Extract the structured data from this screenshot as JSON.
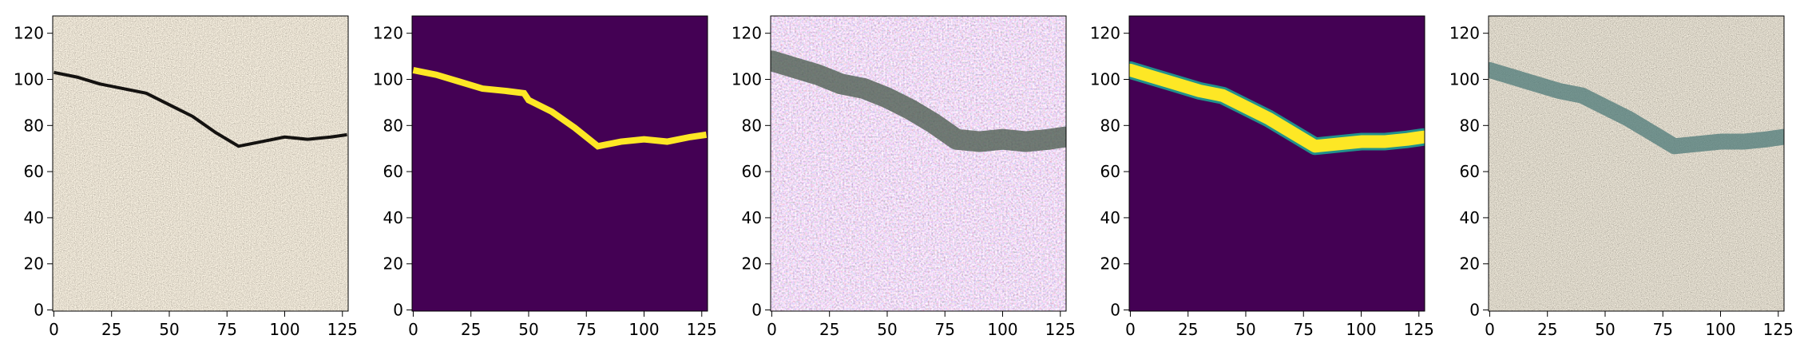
{
  "chart_data": [
    {
      "type": "heatmap",
      "image": "pavement crack photo",
      "colormap": "rgb",
      "x_ticks": [
        "0",
        "25",
        "50",
        "75",
        "100",
        "125"
      ],
      "y_ticks": [
        "0",
        "20",
        "40",
        "60",
        "80",
        "100",
        "120"
      ],
      "xlim": [
        -0.5,
        127.5
      ],
      "ylim": [
        127.5,
        -0.5
      ],
      "crack_path": [
        [
          0,
          103
        ],
        [
          10,
          101
        ],
        [
          20,
          98
        ],
        [
          30,
          96
        ],
        [
          40,
          94
        ],
        [
          50,
          89
        ],
        [
          60,
          84
        ],
        [
          70,
          77
        ],
        [
          80,
          71
        ],
        [
          90,
          73
        ],
        [
          100,
          75
        ],
        [
          110,
          74
        ],
        [
          120,
          75
        ],
        [
          127,
          76
        ]
      ]
    },
    {
      "type": "heatmap",
      "image": "ground truth crack mask",
      "colormap": "viridis",
      "x_ticks": [
        "0",
        "25",
        "50",
        "75",
        "100",
        "125"
      ],
      "y_ticks": [
        "0",
        "20",
        "40",
        "60",
        "80",
        "100",
        "120"
      ],
      "xlim": [
        -0.5,
        127.5
      ],
      "ylim": [
        127.5,
        -0.5
      ],
      "crack_path": [
        [
          0,
          104
        ],
        [
          10,
          102
        ],
        [
          20,
          99
        ],
        [
          30,
          96
        ],
        [
          40,
          95
        ],
        [
          48,
          94
        ],
        [
          50,
          91
        ],
        [
          60,
          86
        ],
        [
          70,
          79
        ],
        [
          80,
          71
        ],
        [
          90,
          73
        ],
        [
          100,
          74
        ],
        [
          110,
          73
        ],
        [
          120,
          75
        ],
        [
          127,
          76
        ]
      ]
    },
    {
      "type": "heatmap",
      "image": "generated image",
      "colormap": "rgb",
      "x_ticks": [
        "0",
        "25",
        "50",
        "75",
        "100",
        "125"
      ],
      "y_ticks": [
        "0",
        "20",
        "40",
        "60",
        "80",
        "100",
        "120"
      ],
      "xlim": [
        -0.5,
        127.5
      ],
      "ylim": [
        127.5,
        -0.5
      ],
      "crack_path": [
        [
          0,
          108
        ],
        [
          10,
          105
        ],
        [
          20,
          102
        ],
        [
          30,
          98
        ],
        [
          40,
          96
        ],
        [
          50,
          92
        ],
        [
          60,
          87
        ],
        [
          70,
          81
        ],
        [
          80,
          74
        ],
        [
          90,
          73
        ],
        [
          100,
          74
        ],
        [
          110,
          73
        ],
        [
          120,
          74
        ],
        [
          127,
          75
        ]
      ]
    },
    {
      "type": "heatmap",
      "image": "predicted crack mask",
      "colormap": "viridis",
      "x_ticks": [
        "0",
        "25",
        "50",
        "75",
        "100",
        "125"
      ],
      "y_ticks": [
        "0",
        "20",
        "40",
        "60",
        "80",
        "100",
        "120"
      ],
      "xlim": [
        -0.5,
        127.5
      ],
      "ylim": [
        127.5,
        -0.5
      ],
      "crack_path": [
        [
          0,
          104
        ],
        [
          10,
          101
        ],
        [
          20,
          98
        ],
        [
          30,
          95
        ],
        [
          40,
          93
        ],
        [
          50,
          88
        ],
        [
          60,
          83
        ],
        [
          70,
          77
        ],
        [
          80,
          71
        ],
        [
          90,
          72
        ],
        [
          100,
          73
        ],
        [
          110,
          73
        ],
        [
          120,
          74
        ],
        [
          127,
          75
        ]
      ]
    },
    {
      "type": "heatmap",
      "image": "overlay of prediction on photo",
      "colormap": "rgb",
      "x_ticks": [
        "0",
        "25",
        "50",
        "75",
        "100",
        "125"
      ],
      "y_ticks": [
        "0",
        "20",
        "40",
        "60",
        "80",
        "100",
        "120"
      ],
      "xlim": [
        -0.5,
        127.5
      ],
      "ylim": [
        127.5,
        -0.5
      ],
      "crack_path": [
        [
          0,
          104
        ],
        [
          10,
          101
        ],
        [
          20,
          98
        ],
        [
          30,
          95
        ],
        [
          40,
          93
        ],
        [
          50,
          88
        ],
        [
          60,
          83
        ],
        [
          70,
          77
        ],
        [
          80,
          71
        ],
        [
          90,
          72
        ],
        [
          100,
          73
        ],
        [
          110,
          73
        ],
        [
          120,
          74
        ],
        [
          127,
          75
        ]
      ]
    }
  ]
}
